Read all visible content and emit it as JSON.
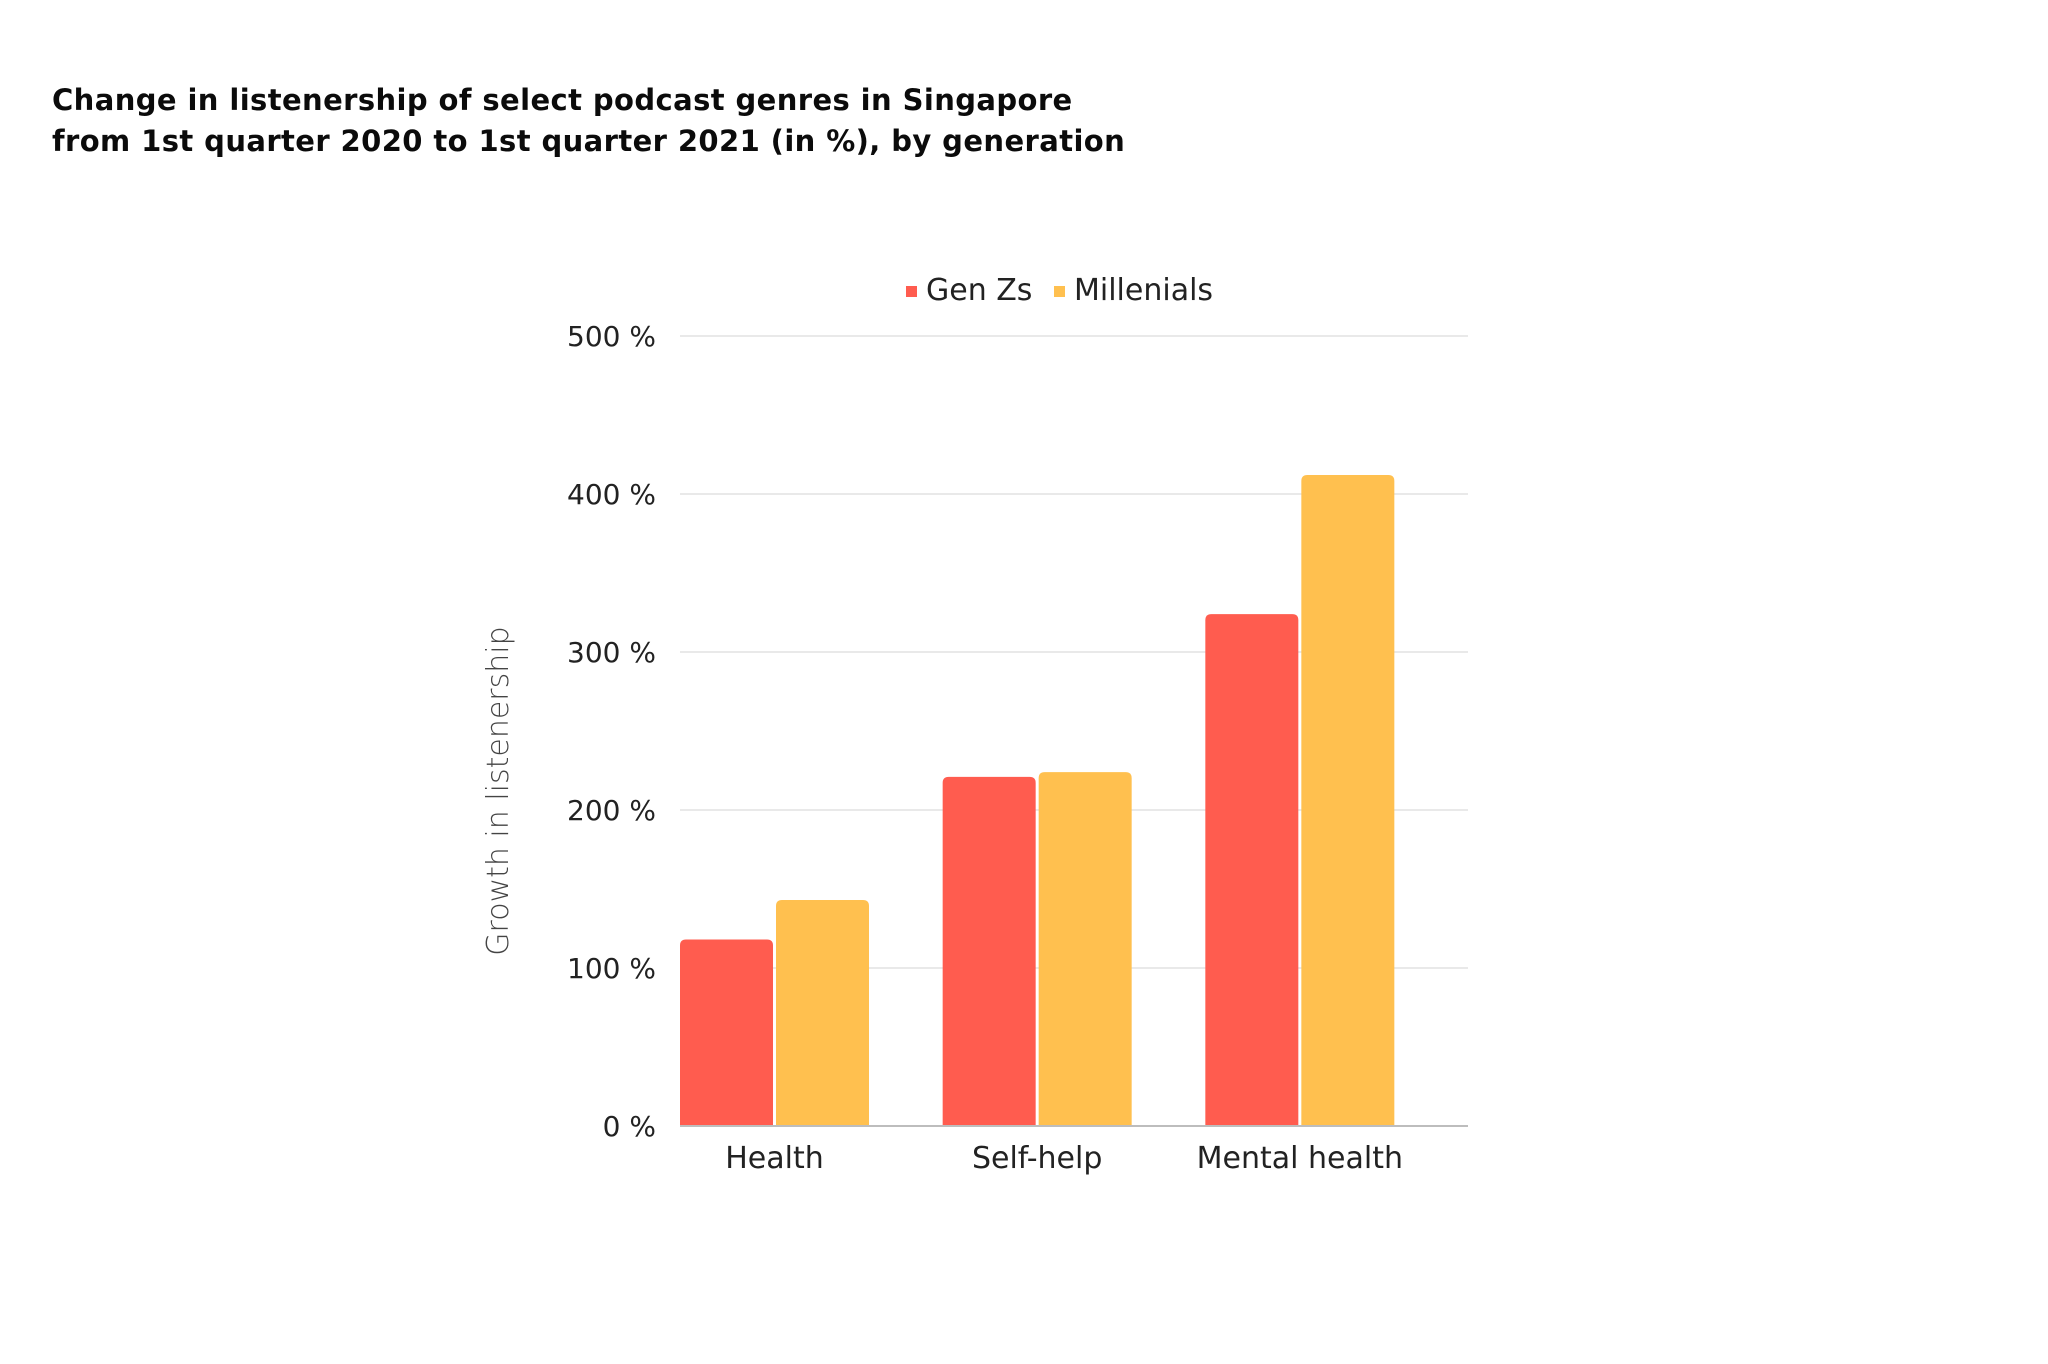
{
  "title_lines": [
    "Change in listenership of select podcast genres in Singapore",
    "from 1st quarter 2020 to 1st quarter 2021 (in %), by generation"
  ],
  "chart_data": {
    "type": "bar",
    "title": "Change in listenership of select podcast genres in Singapore from 1st quarter 2020 to 1st quarter 2021 (in %), by generation",
    "categories": [
      "Health",
      "Self-help",
      "Mental health"
    ],
    "series": [
      {
        "name": "Gen Zs",
        "color": "#FF5C4F",
        "values": [
          118,
          221,
          324
        ]
      },
      {
        "name": "Millenials",
        "color": "#FFC04F",
        "values": [
          143,
          224,
          412
        ]
      }
    ],
    "ylabel": "Growth in listenership",
    "xlabel": "",
    "ylim": [
      0,
      500
    ],
    "yticks": [
      0,
      100,
      200,
      300,
      400,
      500
    ],
    "ytick_labels": [
      "0 %",
      "100 %",
      "200 %",
      "300 %",
      "400 %",
      "500 %"
    ],
    "grid": true,
    "legend_position": "top"
  }
}
